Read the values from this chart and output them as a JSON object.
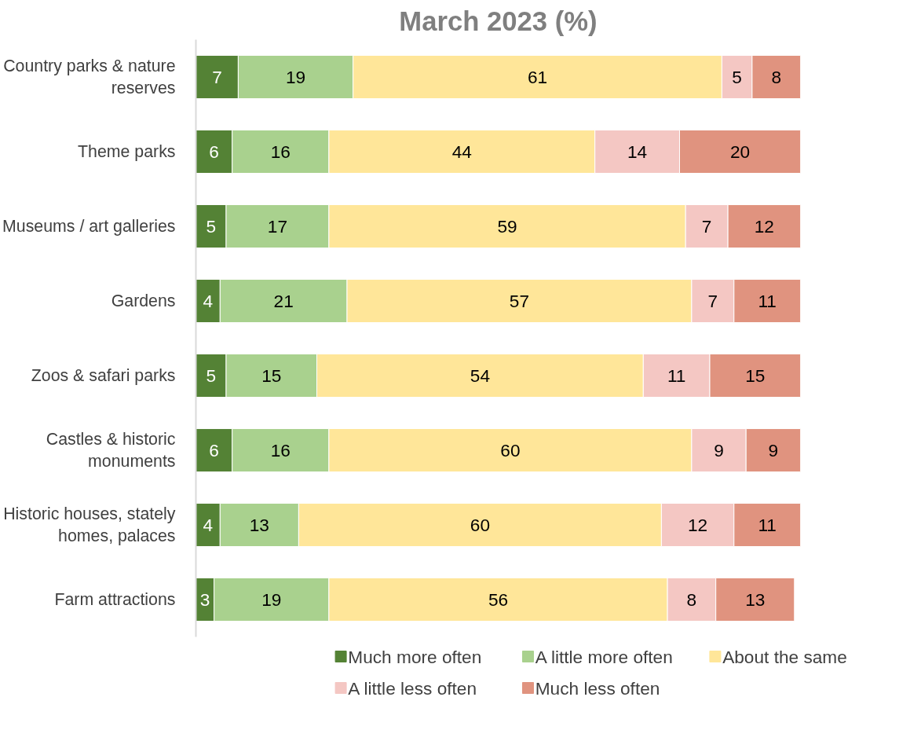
{
  "chart_data": {
    "type": "bar",
    "orientation": "horizontal",
    "stacked": true,
    "title": "March 2023 (%)",
    "categories": [
      "Country parks & nature reserves",
      "Theme parks",
      "Museums / art galleries",
      "Gardens",
      "Zoos & safari parks",
      "Castles & historic monuments",
      "Historic houses, stately homes, palaces",
      "Farm attractions"
    ],
    "series": [
      {
        "name": "Much more often",
        "color": "#548235",
        "values": [
          7,
          6,
          5,
          4,
          5,
          6,
          4,
          3
        ]
      },
      {
        "name": "A little more often",
        "color": "#a9d18e",
        "values": [
          19,
          16,
          17,
          21,
          15,
          16,
          13,
          19
        ]
      },
      {
        "name": "About the same",
        "color": "#ffe699",
        "values": [
          61,
          44,
          59,
          57,
          54,
          60,
          60,
          56
        ]
      },
      {
        "name": "A little less often",
        "color": "#f4c7c3",
        "values": [
          5,
          14,
          7,
          7,
          11,
          9,
          12,
          8
        ]
      },
      {
        "name": "Much less often",
        "color": "#e0937f",
        "values": [
          8,
          20,
          12,
          11,
          15,
          9,
          11,
          13
        ]
      }
    ],
    "xlim": [
      0,
      100
    ],
    "data_labels": true,
    "tick_labels": "y",
    "grid": false,
    "legend": "bottom"
  }
}
